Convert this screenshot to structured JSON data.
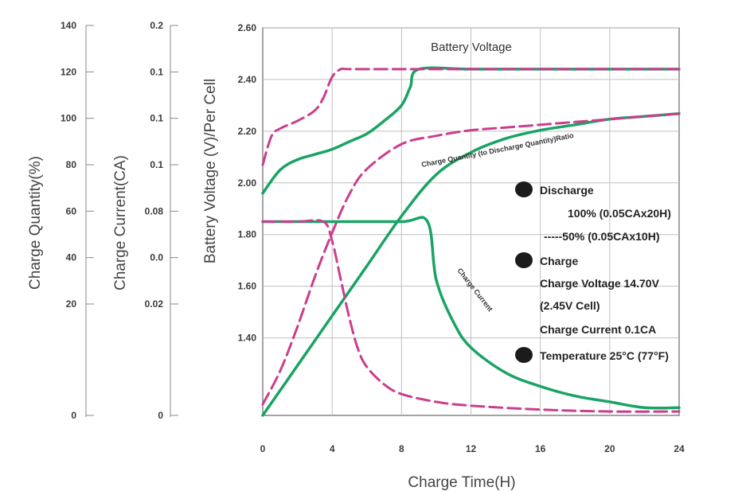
{
  "chart_data": {
    "type": "line",
    "title": "",
    "xlabel": "Charge Time(H)",
    "xlim": [
      0,
      24
    ],
    "x_ticks": [
      0,
      4,
      8,
      12,
      16,
      20,
      24
    ],
    "grid": true,
    "axes": {
      "quantity": {
        "label": "Charge Quantity(%)",
        "ticks": [
          "0",
          "20",
          "40",
          "60",
          "80",
          "100",
          "120",
          "140"
        ],
        "ylim": [
          0,
          140
        ]
      },
      "current": {
        "label": "Charge Current(CA)",
        "ticks": [
          "0",
          "0.02",
          "0.0",
          "0.08",
          "0.1",
          "0.1",
          "0.1",
          "0.2"
        ],
        "ylim": [
          0,
          0.2
        ]
      },
      "voltage": {
        "label": "Battery Voltage (V)/Per Cell",
        "ticks": [
          "1.40",
          "1.60",
          "1.80",
          "2.00",
          "2.20",
          "2.40",
          "2.60"
        ],
        "ylim": [
          1.1,
          2.6
        ]
      }
    },
    "series": [
      {
        "name": "Battery Voltage",
        "axis": "voltage",
        "style": "solid",
        "color": "#19a364",
        "x": [
          0,
          1,
          2,
          3,
          4,
          5,
          6,
          7,
          8,
          8.5,
          9,
          12,
          16,
          20,
          24
        ],
        "y": [
          1.96,
          2.05,
          2.09,
          2.11,
          2.13,
          2.16,
          2.19,
          2.24,
          2.3,
          2.37,
          2.44,
          2.44,
          2.44,
          2.44,
          2.44
        ]
      },
      {
        "name": "",
        "axis": "voltage",
        "style": "dashed",
        "color": "#cc3d8e",
        "x": [
          0,
          0.5,
          1,
          2,
          3,
          3.5,
          4,
          4.5,
          5,
          8,
          12,
          16,
          20,
          24
        ],
        "y": [
          2.07,
          2.18,
          2.21,
          2.24,
          2.28,
          2.33,
          2.41,
          2.44,
          2.44,
          2.44,
          2.44,
          2.44,
          2.44,
          2.44
        ]
      },
      {
        "name": "Charge Quantity (to Discharge Quantity)Ratio",
        "axis": "quantity",
        "style": "solid",
        "color": "#19a364",
        "x": [
          0,
          2,
          4,
          6,
          8,
          10,
          12,
          14,
          16,
          18,
          20,
          22,
          24
        ],
        "y": [
          0,
          18,
          36,
          54,
          72,
          87,
          95,
          100,
          103,
          105,
          107,
          108,
          109
        ]
      },
      {
        "name": "",
        "axis": "quantity",
        "style": "dashed",
        "color": "#cc3d8e",
        "x": [
          0,
          1,
          2,
          3,
          4,
          5,
          6,
          8,
          10,
          12,
          14,
          16,
          18,
          20,
          22,
          24
        ],
        "y": [
          4,
          16,
          32,
          50,
          66,
          80,
          89,
          98,
          101,
          103,
          104,
          105,
          106,
          107,
          108,
          109
        ]
      },
      {
        "name": "Charge Current",
        "axis": "current",
        "style": "solid",
        "color": "#19a364",
        "x": [
          0,
          4,
          8,
          9.5,
          10,
          11,
          12,
          14,
          16,
          18,
          20,
          22,
          24
        ],
        "y": [
          0.1,
          0.1,
          0.1,
          0.1,
          0.07,
          0.048,
          0.035,
          0.022,
          0.015,
          0.01,
          0.007,
          0.004,
          0.004
        ]
      },
      {
        "name": "",
        "axis": "current",
        "style": "dashed",
        "color": "#cc3d8e",
        "x": [
          0,
          2,
          3.5,
          4,
          4.5,
          5,
          5.5,
          6,
          7,
          8,
          10,
          12,
          16,
          20,
          24
        ],
        "y": [
          0.1,
          0.1,
          0.1,
          0.09,
          0.07,
          0.05,
          0.034,
          0.025,
          0.016,
          0.011,
          0.007,
          0.005,
          0.003,
          0.002,
          0.002
        ]
      }
    ],
    "annotations": {
      "voltage_curve": "Battery Voltage",
      "quantity_curve": "Charge Quantity (to Discharge Quantity)Ratio",
      "current_curve": "Charge Current"
    },
    "legend": {
      "placement": "right",
      "discharge_title": "Discharge",
      "discharge_line1": "100% (0.05CAx20H)",
      "discharge_line2": "-----50% (0.05CAx10H)",
      "charge_title": "Charge",
      "charge_line1": "Charge Voltage 14.70V",
      "charge_line2": "(2.45V Cell)",
      "charge_line3": "Charge Current 0.1CA",
      "temperature": "Temperature 25°C (77°F)"
    }
  },
  "colors": {
    "green": "#19a364",
    "magenta": "#cc3d8e",
    "grid": "#bfbfbf",
    "axis": "#666666"
  }
}
